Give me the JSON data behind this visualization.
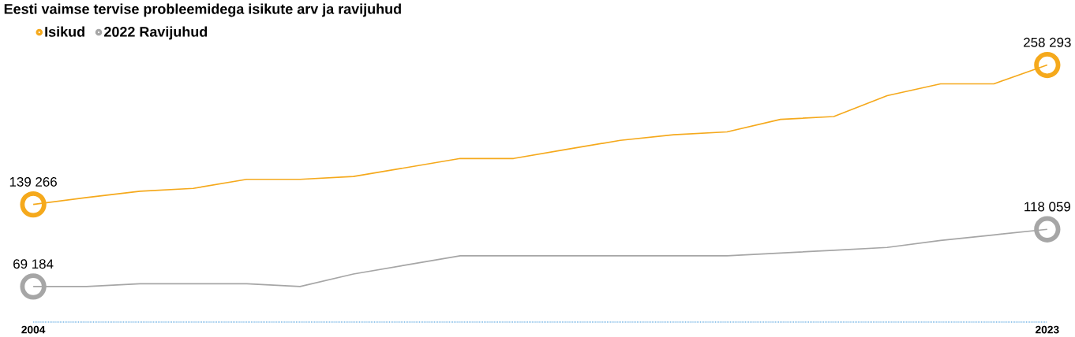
{
  "chart_data": {
    "type": "line",
    "title": "Eesti vaimse tervise probleemidega isikute arv ja ravijuhud",
    "x": [
      2004,
      2005,
      2006,
      2007,
      2008,
      2009,
      2010,
      2011,
      2012,
      2013,
      2014,
      2015,
      2016,
      2017,
      2018,
      2019,
      2020,
      2021,
      2022,
      2023
    ],
    "xlim": [
      2004,
      2023
    ],
    "xticks": [
      2004,
      2023
    ],
    "tick_labels": "x",
    "grid": false,
    "legend": "top left",
    "line_style": "solid",
    "series": [
      {
        "name": "Isikud",
        "color": "#f5a91c",
        "values": [
          139266,
          145200,
          150600,
          153000,
          160700,
          160700,
          163100,
          170800,
          178500,
          178500,
          186300,
          194000,
          198800,
          201200,
          211900,
          214300,
          232100,
          242200,
          242200,
          258293
        ],
        "value_labels": [
          "139 266",
          null,
          null,
          null,
          null,
          null,
          null,
          null,
          null,
          null,
          null,
          null,
          null,
          null,
          null,
          null,
          null,
          null,
          null,
          "258 293"
        ]
      },
      {
        "name": "2022 Ravijuhud",
        "color": "#a6a6a6",
        "values": [
          69184,
          69200,
          71600,
          71600,
          71600,
          69200,
          79900,
          87700,
          95400,
          95400,
          95400,
          95400,
          95400,
          95400,
          97800,
          100200,
          102600,
          108500,
          113300,
          118059
        ],
        "value_labels": [
          "69 184",
          null,
          null,
          null,
          null,
          null,
          null,
          null,
          null,
          null,
          null,
          null,
          null,
          null,
          null,
          null,
          null,
          null,
          null,
          "118 059"
        ]
      }
    ]
  }
}
